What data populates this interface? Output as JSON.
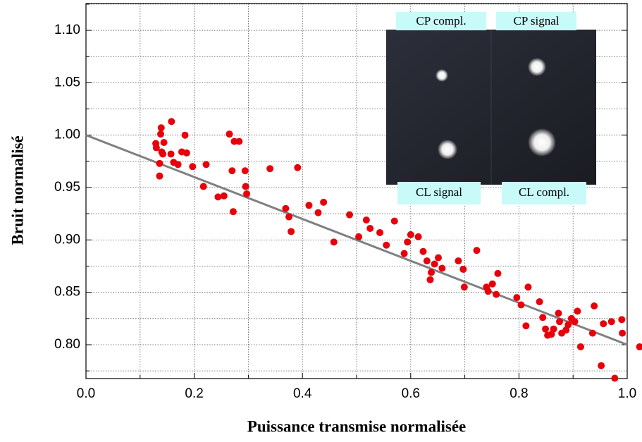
{
  "chart_data": {
    "type": "scatter",
    "xlabel": "Puissance transmise normalisée",
    "ylabel": "Bruit normalisé",
    "xlim": [
      0,
      1
    ],
    "ylim": [
      0.7677,
      1.1256
    ],
    "xticks": [
      {
        "value": 0,
        "label": "0.0"
      },
      0.2,
      0.4,
      0.6,
      0.8,
      {
        "value": 1,
        "label": "1.0"
      }
    ],
    "yticks": [
      {
        "value": 0.8,
        "label": "0.80"
      },
      0.85,
      {
        "value": 0.9,
        "label": "0.90"
      },
      0.95,
      {
        "value": 1,
        "label": "1.00"
      },
      1.05,
      {
        "value": 1.1,
        "label": "1.10"
      }
    ],
    "xgrid_minor": [
      0.1,
      0.3,
      0.5,
      0.7,
      0.9
    ],
    "ygrid_minor": [
      0.775,
      0.825,
      0.875,
      0.925,
      0.975,
      1.025,
      1.075,
      1.125
    ],
    "grid": true,
    "series": [
      {
        "color": "#e8000b",
        "x": [
          0.129,
          0.13,
          0.136,
          0.136,
          0.138,
          0.139,
          0.14,
          0.142,
          0.144,
          0.158,
          0.157,
          0.162,
          0.17,
          0.177,
          0.183,
          0.186,
          0.197,
          0.222,
          0.217,
          0.244,
          0.255,
          0.265,
          0.27,
          0.274,
          0.272,
          0.283,
          0.294,
          0.295,
          0.297,
          0.34,
          0.391,
          0.369,
          0.375,
          0.379,
          0.412,
          0.429,
          0.439,
          0.458,
          0.487,
          0.504,
          0.518,
          0.525,
          0.543,
          0.555,
          0.57,
          0.588,
          0.594,
          0.6,
          0.614,
          0.623,
          0.63,
          0.636,
          0.638,
          0.644,
          0.651,
          0.658,
          0.688,
          0.697,
          0.699,
          0.722,
          0.74,
          0.743,
          0.751,
          0.758,
          0.761,
          0.796,
          0.804,
          0.813,
          0.817,
          0.838,
          0.844,
          0.849,
          0.853,
          0.86,
          0.864,
          0.873,
          0.875,
          0.879,
          0.887,
          0.891,
          0.897,
          0.903,
          0.908,
          0.914,
          0.939,
          0.936,
          0.952,
          0.956,
          0.971,
          0.977,
          0.99,
          0.991,
          1.023
        ],
        "values": [
          0.992,
          0.988,
          0.973,
          0.961,
          1.001,
          1.007,
          0.984,
          0.982,
          0.993,
          1.013,
          0.982,
          0.974,
          0.972,
          0.984,
          1.0,
          0.983,
          0.97,
          0.972,
          0.951,
          0.941,
          0.942,
          1.001,
          0.966,
          0.994,
          0.927,
          0.994,
          0.966,
          0.951,
          0.944,
          0.968,
          0.969,
          0.93,
          0.922,
          0.908,
          0.933,
          0.926,
          0.936,
          0.898,
          0.924,
          0.903,
          0.919,
          0.911,
          0.907,
          0.895,
          0.918,
          0.887,
          0.898,
          0.905,
          0.903,
          0.889,
          0.88,
          0.862,
          0.869,
          0.877,
          0.883,
          0.873,
          0.88,
          0.872,
          0.855,
          0.89,
          0.855,
          0.851,
          0.858,
          0.848,
          0.868,
          0.845,
          0.838,
          0.818,
          0.855,
          0.841,
          0.826,
          0.815,
          0.809,
          0.81,
          0.815,
          0.83,
          0.822,
          0.811,
          0.814,
          0.819,
          0.825,
          0.822,
          0.832,
          0.798,
          0.837,
          0.811,
          0.78,
          0.82,
          0.822,
          0.768,
          0.824,
          0.811,
          0.798
        ]
      }
    ],
    "fit": {
      "color": "#808080",
      "x": [
        0,
        1
      ],
      "values": [
        1.0,
        0.8
      ]
    },
    "annotations": [
      "CP compl.",
      "CP signal",
      "CL signal",
      "CL compl."
    ]
  }
}
